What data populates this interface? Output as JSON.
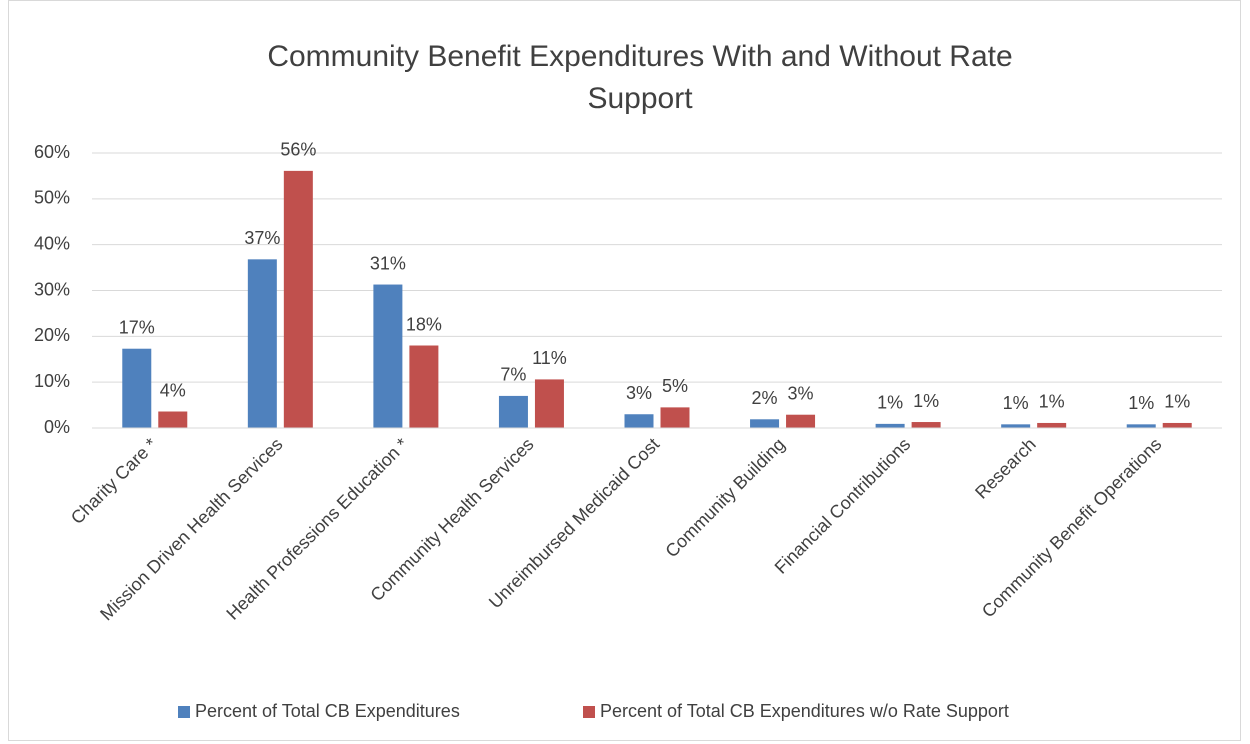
{
  "chart_data": {
    "type": "bar",
    "title": [
      "Community Benefit Expenditures With and Without Rate",
      "Support"
    ],
    "categories": [
      "Charity Care *",
      "Mission Driven Health Services",
      "Health Professions Education *",
      "Community Health Services",
      "Unreimbursed Medicaid Cost",
      "Community Building",
      "Financial Contributions",
      "Research",
      "Community Benefit Operations"
    ],
    "series": [
      {
        "name": "Percent of Total CB Expenditures",
        "color": "#4f81bd",
        "values": [
          17.3,
          36.8,
          31.3,
          7.0,
          3.0,
          1.9,
          0.9,
          0.8,
          0.8
        ],
        "value_labels": [
          "17%",
          "37%",
          "31%",
          "7%",
          "3%",
          "2%",
          "1%",
          "1%",
          "1%"
        ]
      },
      {
        "name": "Percent of Total CB Expenditures w/o Rate Support",
        "color": "#c0504d",
        "values": [
          3.6,
          56.1,
          18.0,
          10.6,
          4.5,
          2.9,
          1.3,
          1.1,
          1.1
        ],
        "value_labels": [
          "4%",
          "56%",
          "18%",
          "11%",
          "5%",
          "3%",
          "1%",
          "1%",
          "1%"
        ]
      }
    ],
    "ylim": [
      0,
      60
    ],
    "yticks": [
      {
        "value": 0,
        "label": "0%"
      },
      {
        "value": 10,
        "label": "10%"
      },
      {
        "value": 20,
        "label": "20%"
      },
      {
        "value": 30,
        "label": "30%"
      },
      {
        "value": 40,
        "label": "40%"
      },
      {
        "value": 50,
        "label": "50%"
      },
      {
        "value": 60,
        "label": "60%"
      }
    ],
    "grid": true,
    "legend": "bottom"
  }
}
